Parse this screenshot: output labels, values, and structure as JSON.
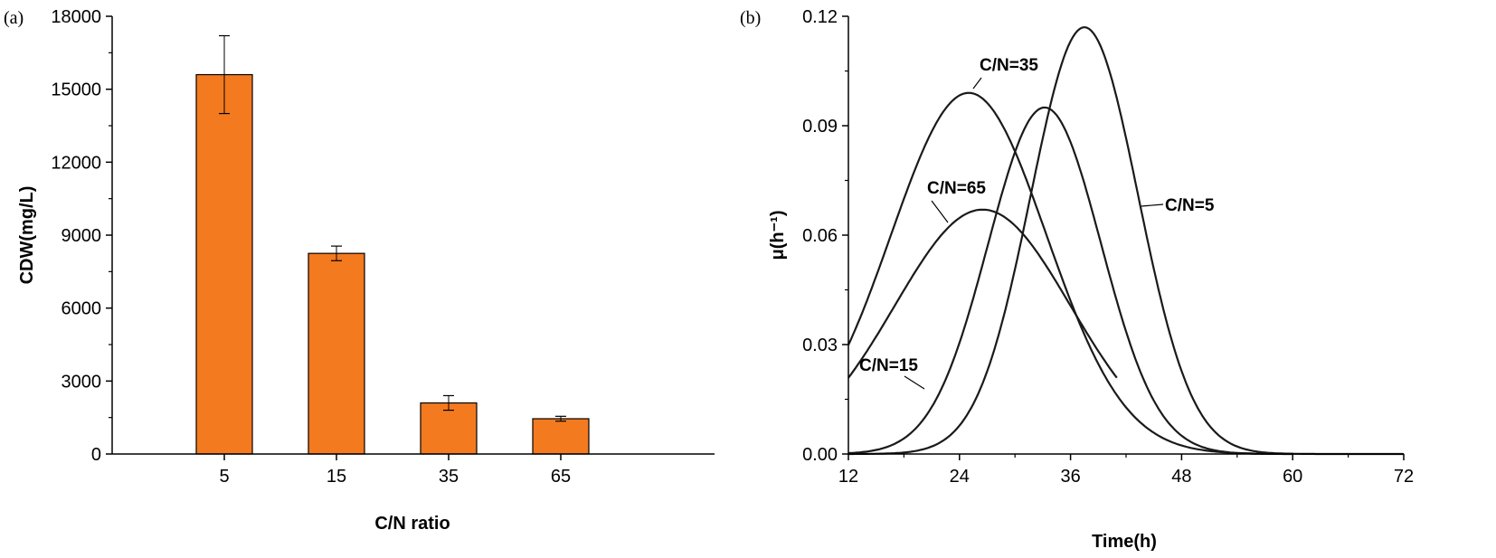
{
  "chart_data": [
    {
      "type": "bar",
      "panel_label": "(a)",
      "xlabel": "C/N ratio",
      "ylabel": "CDW(mg/L)",
      "categories": [
        "5",
        "15",
        "35",
        "65"
      ],
      "values": [
        15600,
        8250,
        2100,
        1450
      ],
      "errors": [
        1600,
        300,
        300,
        100
      ],
      "ylim": [
        0,
        18000
      ],
      "yticks": [
        "0",
        "3000",
        "6000",
        "9000",
        "12000",
        "15000",
        "18000"
      ],
      "bar_color": "#f47a1f",
      "grid": false
    },
    {
      "type": "line",
      "panel_label": "(b)",
      "xlabel": "Time(h)",
      "ylabel": "μ(h⁻¹)",
      "xlim": [
        12,
        72
      ],
      "ylim": [
        0,
        0.12
      ],
      "xticks": [
        "12",
        "24",
        "36",
        "48",
        "60",
        "72"
      ],
      "yticks": [
        "0.00",
        "0.03",
        "0.06",
        "0.09",
        "0.12"
      ],
      "series": [
        {
          "name": "C/N=5",
          "peak_x": 37.5,
          "peak_y": 0.117,
          "width": 5.8,
          "x_start": 12,
          "x_end": 72
        },
        {
          "name": "C/N=15",
          "peak_x": 33.2,
          "peak_y": 0.095,
          "width": 6.1,
          "x_start": 12,
          "x_end": 60
        },
        {
          "name": "C/N=35",
          "peak_x": 25.0,
          "peak_y": 0.099,
          "width": 8.4,
          "x_start": 12,
          "x_end": 60
        },
        {
          "name": "C/N=65",
          "peak_x": 26.5,
          "peak_y": 0.067,
          "width": 9.5,
          "x_start": 12,
          "x_end": 41
        }
      ],
      "line_color": "#1a1a1a",
      "grid": false
    }
  ]
}
